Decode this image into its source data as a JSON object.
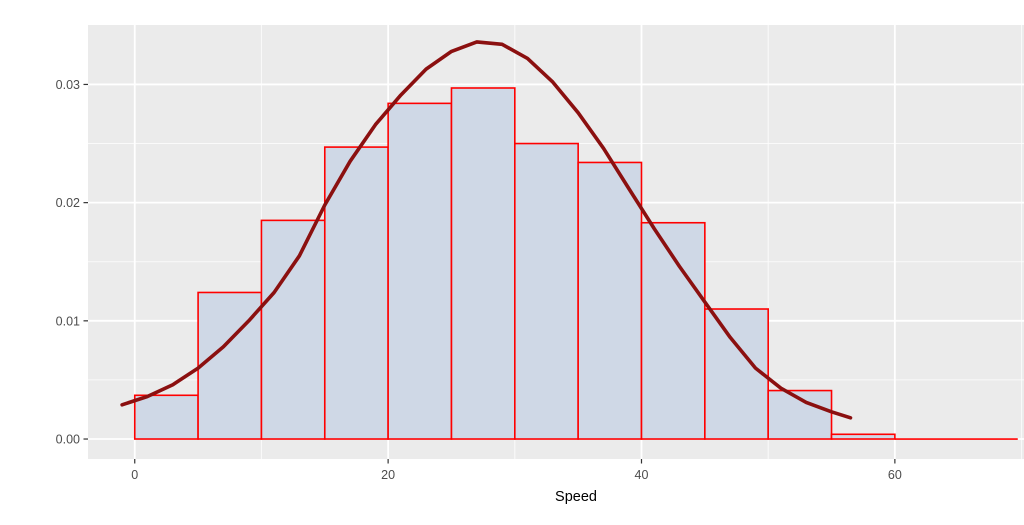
{
  "chart_data": {
    "type": "bar",
    "subtype": "histogram_with_density_overlay",
    "title": "",
    "xlabel": "Speed",
    "ylabel": "",
    "grid": true,
    "legend": "none",
    "xlim": [
      -3.69,
      73.35
    ],
    "ylim": [
      -0.00169,
      0.03503
    ],
    "x_major_ticks": [
      {
        "value": 0,
        "label": "0"
      },
      {
        "value": 20,
        "label": "20"
      },
      {
        "value": 40,
        "label": "40"
      },
      {
        "value": 60,
        "label": "60"
      }
    ],
    "x_minor_ticks": [
      10,
      30,
      50,
      70
    ],
    "y_major_ticks": [
      {
        "value": 0.0,
        "label": "0.00"
      },
      {
        "value": 0.01,
        "label": "0.01"
      },
      {
        "value": 0.02,
        "label": "0.02"
      },
      {
        "value": 0.03,
        "label": "0.03"
      }
    ],
    "y_minor_ticks": [
      0.005,
      0.015,
      0.025
    ],
    "histogram": {
      "bin_start": 0,
      "bin_width": 5,
      "bin_edges": [
        0,
        5,
        10,
        15,
        20,
        25,
        30,
        35,
        40,
        45,
        50,
        55,
        60
      ],
      "densities": [
        0.0037,
        0.0124,
        0.0185,
        0.0247,
        0.0284,
        0.0297,
        0.025,
        0.0234,
        0.0183,
        0.011,
        0.0041,
        0.0004
      ],
      "zero_tail": {
        "x_from": 60,
        "x_to": 69.7
      }
    },
    "density_curve": {
      "points": [
        [
          -1.0,
          0.0029
        ],
        [
          1.0,
          0.0036
        ],
        [
          3.0,
          0.0046
        ],
        [
          5.0,
          0.006
        ],
        [
          7.0,
          0.0078
        ],
        [
          9.0,
          0.01
        ],
        [
          11.0,
          0.0124
        ],
        [
          13.0,
          0.0155
        ],
        [
          15.0,
          0.0198
        ],
        [
          17.0,
          0.0235
        ],
        [
          19.0,
          0.0266
        ],
        [
          21.0,
          0.0291
        ],
        [
          23.0,
          0.0313
        ],
        [
          25.0,
          0.0328
        ],
        [
          27.0,
          0.0336
        ],
        [
          29.0,
          0.0334
        ],
        [
          31.0,
          0.0322
        ],
        [
          33.0,
          0.0302
        ],
        [
          35.0,
          0.0276
        ],
        [
          37.0,
          0.0246
        ],
        [
          39.0,
          0.0212
        ],
        [
          41.0,
          0.0178
        ],
        [
          43.0,
          0.0146
        ],
        [
          45.0,
          0.0116
        ],
        [
          47.0,
          0.0086
        ],
        [
          49.0,
          0.006
        ],
        [
          51.0,
          0.0043
        ],
        [
          53.0,
          0.0031
        ],
        [
          55.0,
          0.0023
        ],
        [
          56.5,
          0.0018
        ]
      ]
    },
    "colors": {
      "panel_background": "#EBEBEB",
      "outer_background": "#FFFFFF",
      "grid_major": "#FFFFFF",
      "grid_minor": "#FFFFFF",
      "bar_fill": "#CFD8E6",
      "bar_border": "#FF0000",
      "curve": "#8B1010",
      "axis_text": "#4D4D4D",
      "axis_title": "#000000",
      "tick_mark": "#333333"
    }
  }
}
